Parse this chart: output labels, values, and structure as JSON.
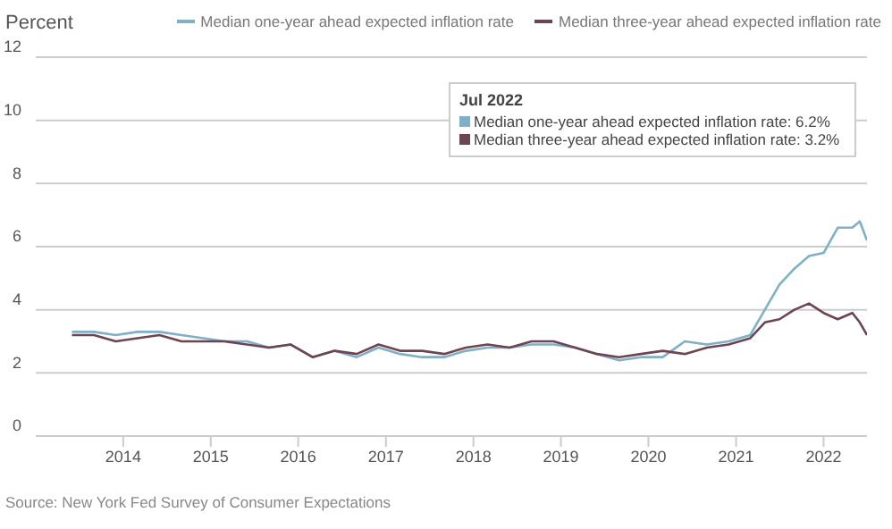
{
  "chart_data": {
    "type": "line",
    "ylabel": "Percent",
    "x": [
      "2013-06",
      "2013-09",
      "2013-12",
      "2014-03",
      "2014-06",
      "2014-09",
      "2014-12",
      "2015-03",
      "2015-06",
      "2015-09",
      "2015-12",
      "2016-03",
      "2016-06",
      "2016-09",
      "2016-12",
      "2017-03",
      "2017-06",
      "2017-09",
      "2017-12",
      "2018-03",
      "2018-06",
      "2018-09",
      "2018-12",
      "2019-03",
      "2019-06",
      "2019-09",
      "2019-12",
      "2020-03",
      "2020-06",
      "2020-09",
      "2020-12",
      "2021-03",
      "2021-05",
      "2021-07",
      "2021-09",
      "2021-11",
      "2022-01",
      "2022-03",
      "2022-05",
      "2022-06",
      "2022-07"
    ],
    "series": [
      {
        "name": "Median one-year ahead expected inflation rate",
        "color": "#7fb0c8",
        "values": [
          3.3,
          3.3,
          3.2,
          3.3,
          3.3,
          3.2,
          3.1,
          3.0,
          3.0,
          2.8,
          2.9,
          2.5,
          2.7,
          2.5,
          2.8,
          2.6,
          2.5,
          2.5,
          2.7,
          2.8,
          2.8,
          2.9,
          2.9,
          2.8,
          2.6,
          2.4,
          2.5,
          2.5,
          3.0,
          2.9,
          3.0,
          3.2,
          4.0,
          4.8,
          5.3,
          5.7,
          5.8,
          6.6,
          6.6,
          6.8,
          6.2
        ]
      },
      {
        "name": "Median three-year ahead expected inflation rate",
        "color": "#6e4450",
        "values": [
          3.2,
          3.2,
          3.0,
          3.1,
          3.2,
          3.0,
          3.0,
          3.0,
          2.9,
          2.8,
          2.9,
          2.5,
          2.7,
          2.6,
          2.9,
          2.7,
          2.7,
          2.6,
          2.8,
          2.9,
          2.8,
          3.0,
          3.0,
          2.8,
          2.6,
          2.5,
          2.6,
          2.7,
          2.6,
          2.8,
          2.9,
          3.1,
          3.6,
          3.7,
          4.0,
          4.2,
          3.9,
          3.7,
          3.9,
          3.6,
          3.2
        ]
      }
    ],
    "xlim": [
      "2013-01",
      "2022-07"
    ],
    "xticks": [
      "2014",
      "2015",
      "2016",
      "2017",
      "2018",
      "2019",
      "2020",
      "2021",
      "2022"
    ],
    "ylim": [
      0,
      12
    ],
    "yticks": [
      0,
      2,
      4,
      6,
      8,
      10,
      12
    ],
    "grid": "y",
    "legend": "top right",
    "marker": "none",
    "line_style": "solid",
    "annotations": [
      "Jul 2022",
      "Median one-year ahead expected inflation rate: 6.2%",
      "Median three-year ahead expected inflation rate: 3.2%",
      "Source: New York Fed Survey of Consumer Expectations"
    ]
  }
}
